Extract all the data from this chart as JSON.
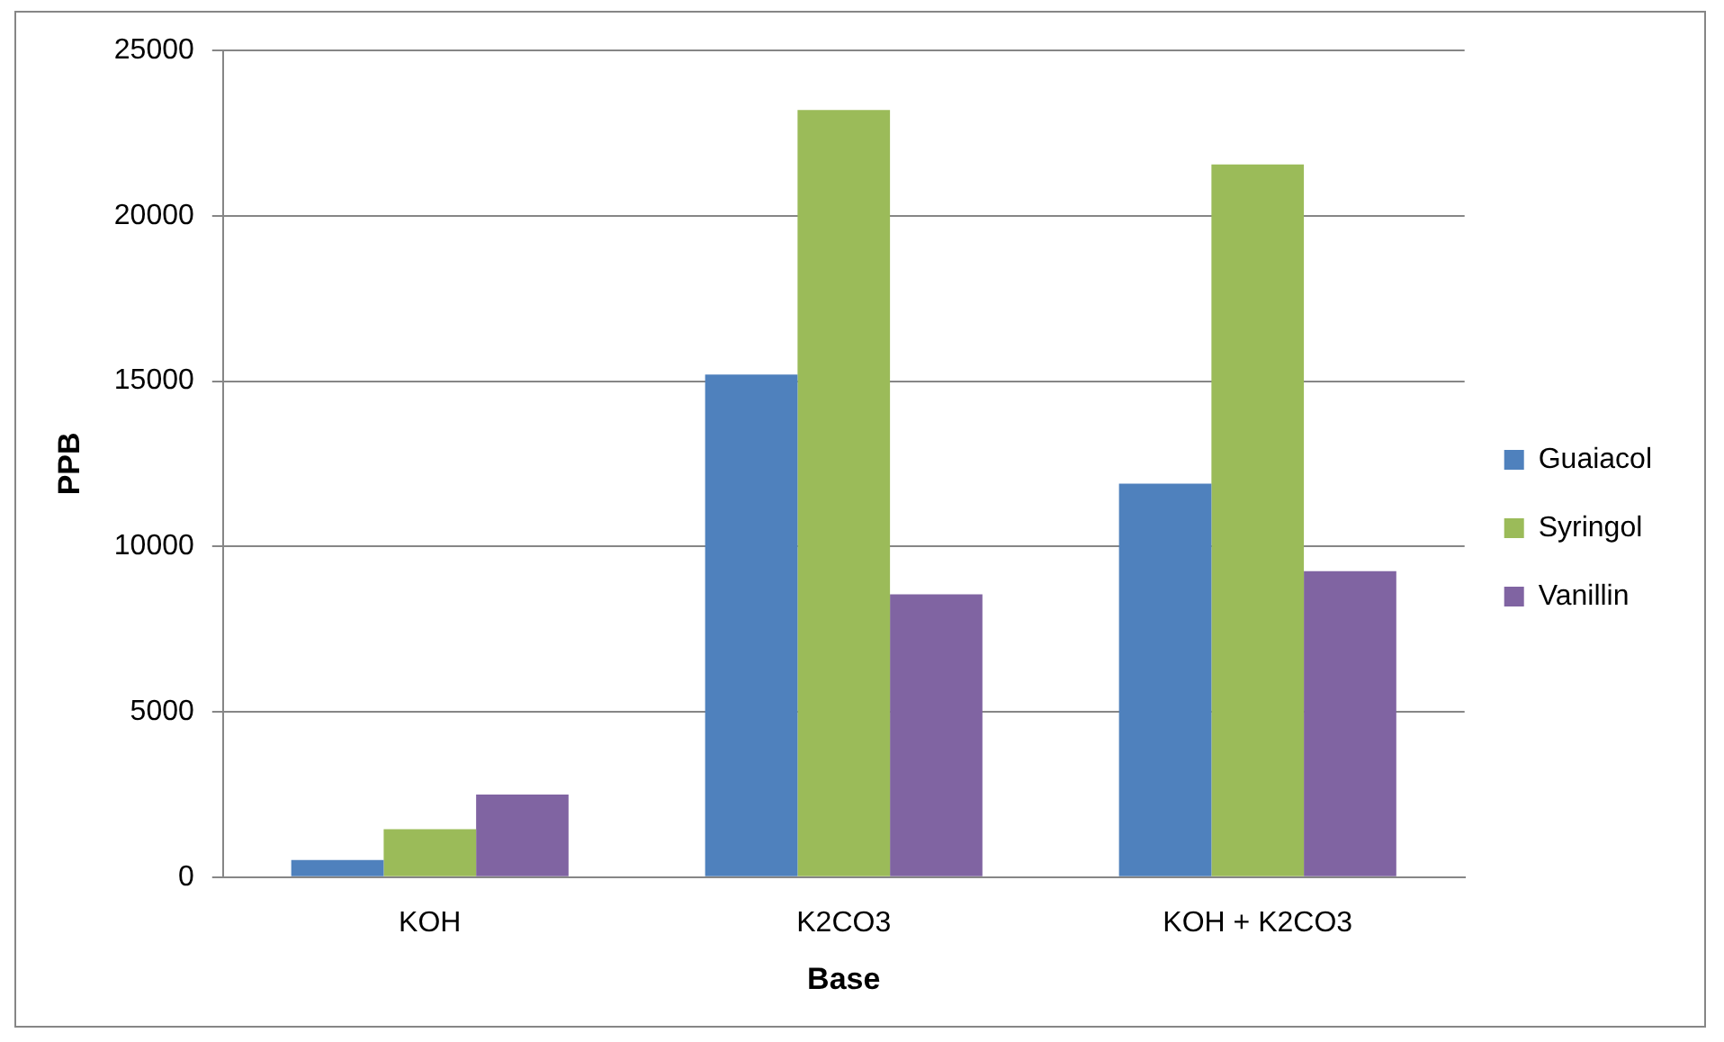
{
  "chart_data": {
    "type": "bar",
    "xlabel": "Base",
    "ylabel": "PPB",
    "categories": [
      "KOH",
      "K2CO3",
      "KOH + K2CO3"
    ],
    "series": [
      {
        "name": "Guaiacol",
        "color": "#4f81bd",
        "values": [
          520,
          15200,
          11900
        ]
      },
      {
        "name": "Syringol",
        "color": "#9bbb59",
        "values": [
          1450,
          23200,
          21550
        ]
      },
      {
        "name": "Vanillin",
        "color": "#8064a2",
        "values": [
          2500,
          8550,
          9250
        ]
      }
    ],
    "ylim": [
      0,
      25000
    ],
    "yticks": [
      0,
      5000,
      10000,
      15000,
      20000,
      25000
    ],
    "grid": "y",
    "legend": "right"
  }
}
